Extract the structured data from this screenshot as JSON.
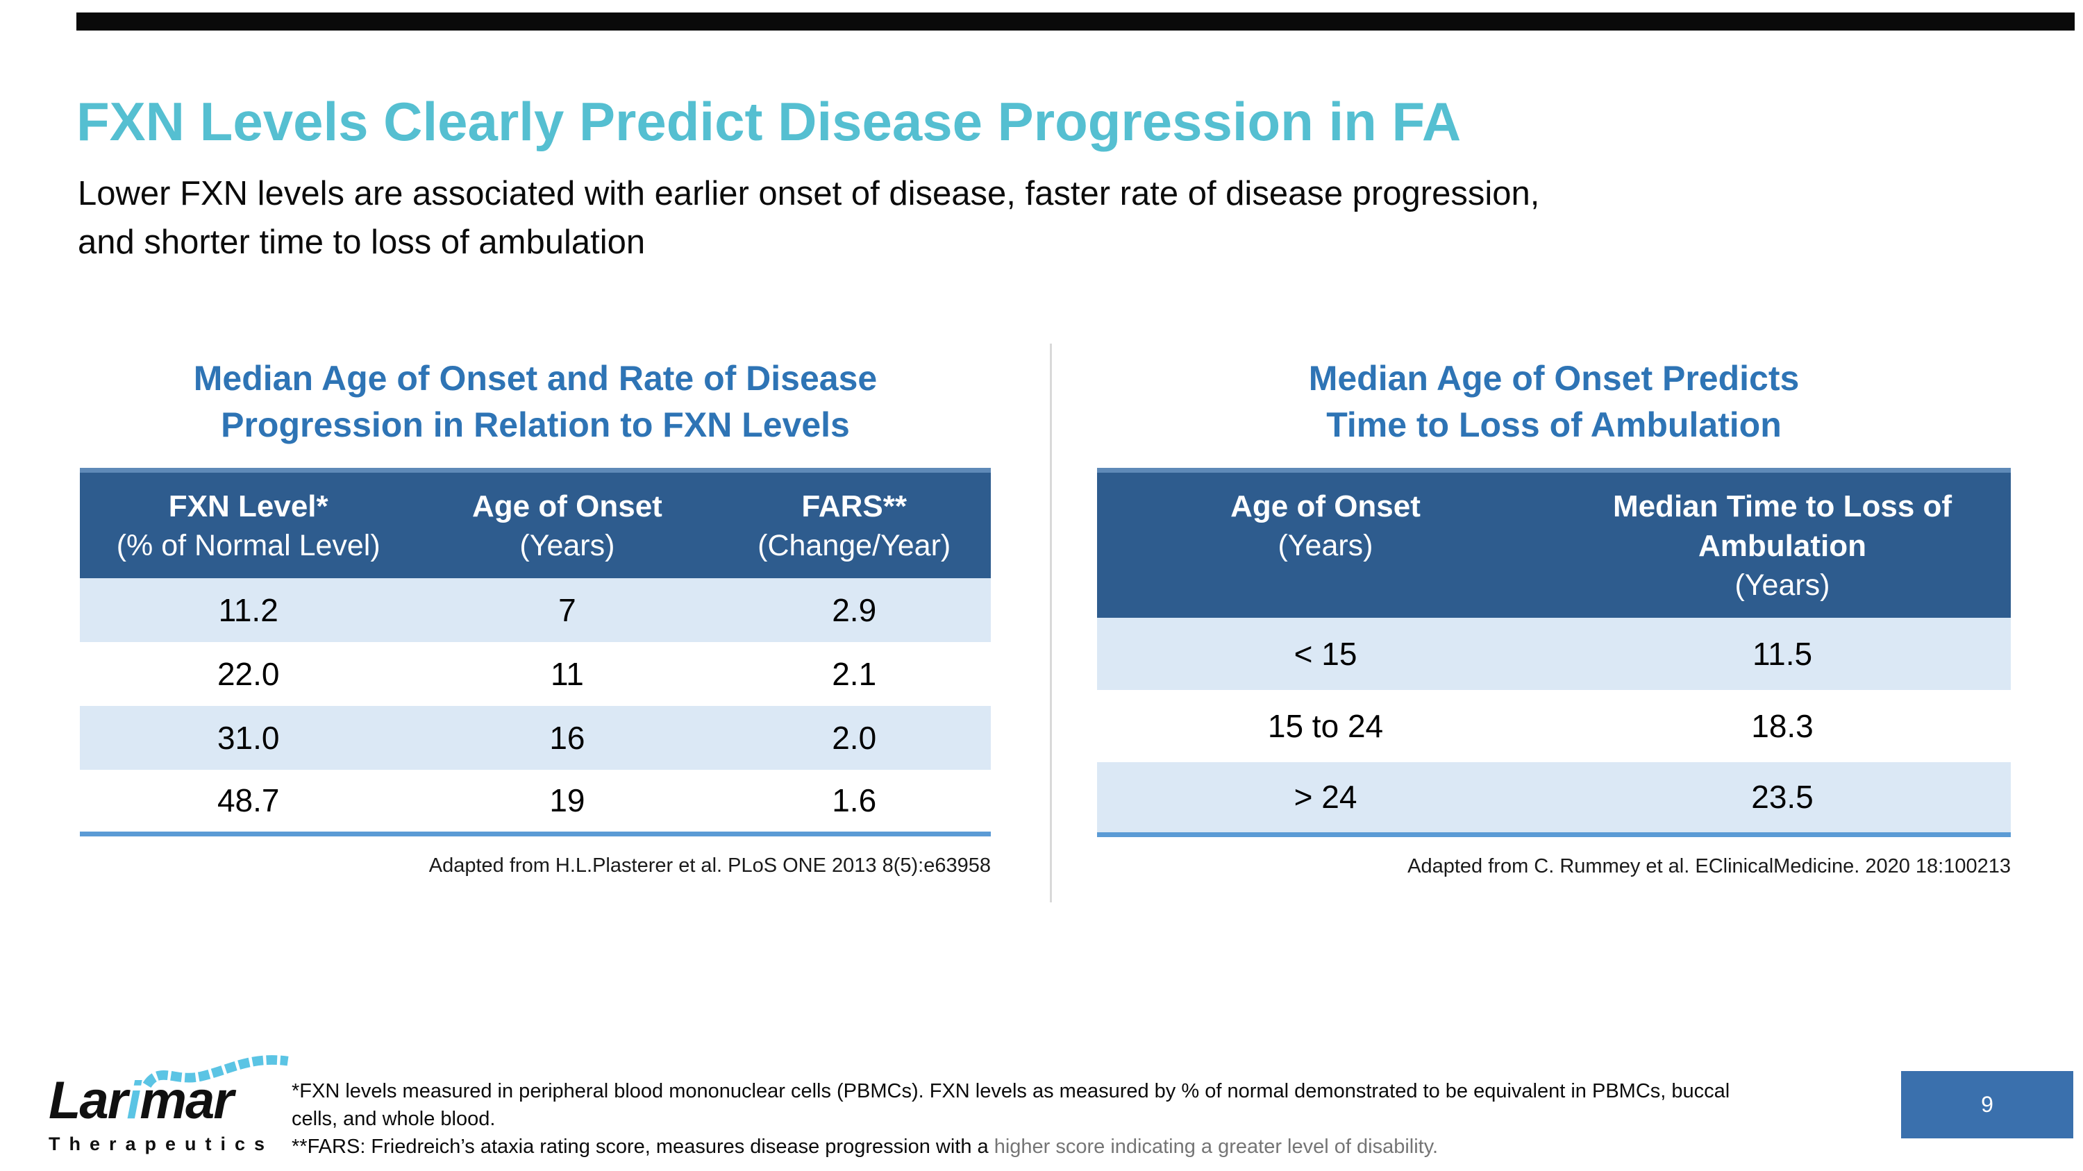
{
  "slide": {
    "title": "FXN Levels Clearly Predict Disease Progression in FA",
    "subtitle_line1": "Lower FXN levels are associated with earlier onset of disease, faster rate of disease progression,",
    "subtitle_line2": "and shorter time to loss of ambulation",
    "page_number": "9"
  },
  "left_panel": {
    "heading_line1": "Median Age of Onset and Rate of Disease",
    "heading_line2": "Progression in Relation to FXN Levels",
    "table": {
      "headers": [
        {
          "lines": [
            "FXN Level*",
            "(% of Normal Level)"
          ]
        },
        {
          "lines": [
            "Age of Onset",
            "(Years)"
          ]
        },
        {
          "lines": [
            "FARS**",
            "(Change/Year)"
          ]
        }
      ],
      "rows": [
        [
          "11.2",
          "7",
          "2.9"
        ],
        [
          "22.0",
          "11",
          "2.1"
        ],
        [
          "31.0",
          "16",
          "2.0"
        ],
        [
          "48.7",
          "19",
          "1.6"
        ]
      ]
    },
    "caption": "Adapted from H.L.Plasterer et al. PLoS ONE 2013 8(5):e63958"
  },
  "right_panel": {
    "heading_line1": "Median Age of Onset Predicts",
    "heading_line2": "Time to Loss of Ambulation",
    "table": {
      "headers": [
        {
          "lines": [
            "Age of Onset",
            "(Years)"
          ]
        },
        {
          "lines": [
            "Median Time to Loss of",
            "Ambulation",
            "(Years)"
          ]
        }
      ],
      "rows": [
        [
          "< 15",
          "11.5"
        ],
        [
          "15 to 24",
          "18.3"
        ],
        [
          "> 24",
          "23.5"
        ]
      ]
    },
    "caption": "Adapted from C. Rummey et al. EClinicalMedicine. 2020 18:100213"
  },
  "footer": {
    "logo_part1": "Lar",
    "logo_i": "i",
    "logo_part2": "mar",
    "logo_subtext": "Therapeutics",
    "footnote1_line1": "*FXN levels measured in peripheral blood mononuclear cells (PBMCs). FXN levels as measured by % of normal demonstrated to be equivalent in PBMCs, buccal",
    "footnote1_line2": "cells, and whole blood.",
    "footnote2_black": "**FARS: Friedreich’s ataxia rating score, measures disease progression with a ",
    "footnote2_grey": "higher score indicating a greater level of disability."
  },
  "colors": {
    "title_teal": "#55BFD1",
    "heading_blue": "#2E74B5",
    "table_header_bg": "#2E5C8E",
    "table_header_top_strip": "#5F8AB8",
    "row_alt_blue": "#DBE8F5",
    "table_bottom_rule": "#5B9BD5",
    "page_box_blue": "#3A70AD",
    "logo_cyan": "#5BC4E4",
    "footnote_grey": "#757575"
  }
}
